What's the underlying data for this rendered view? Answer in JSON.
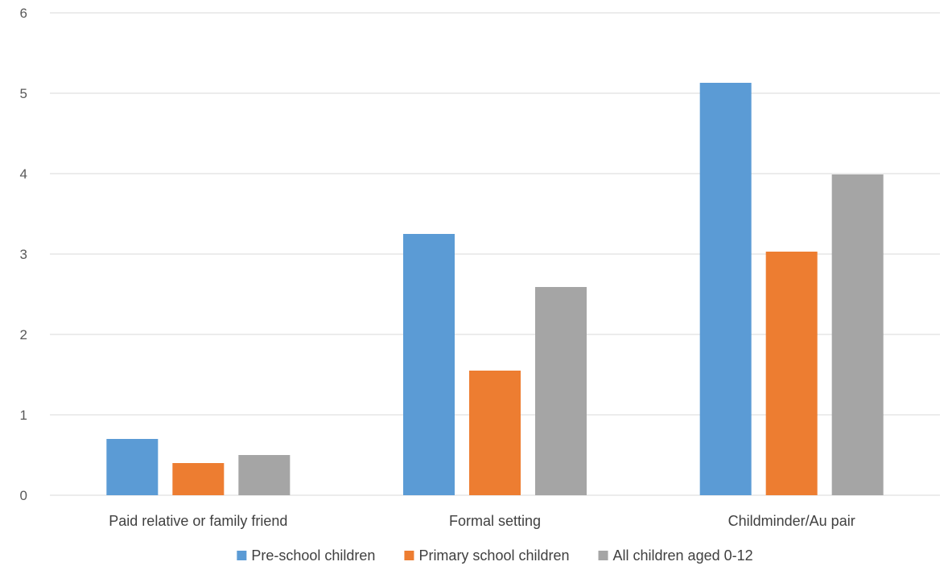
{
  "chart_data": {
    "type": "bar",
    "title": "",
    "xlabel": "",
    "ylabel": "",
    "categories": [
      "Paid relative or family friend",
      "Formal setting",
      "Childminder/Au pair"
    ],
    "series": [
      {
        "name": "Pre-school children",
        "color": "#5B9BD5",
        "values": [
          0.7,
          3.25,
          5.13
        ]
      },
      {
        "name": "Primary school children",
        "color": "#ED7D31",
        "values": [
          0.4,
          1.55,
          3.03
        ]
      },
      {
        "name": "All children aged 0-12",
        "color": "#A5A5A5",
        "values": [
          0.5,
          2.59,
          3.99
        ]
      }
    ],
    "ylim": [
      0,
      6
    ],
    "yticks": [
      "0",
      "1",
      "2",
      "3",
      "4",
      "5",
      "6"
    ],
    "grid": true,
    "legend_position": "bottom"
  }
}
